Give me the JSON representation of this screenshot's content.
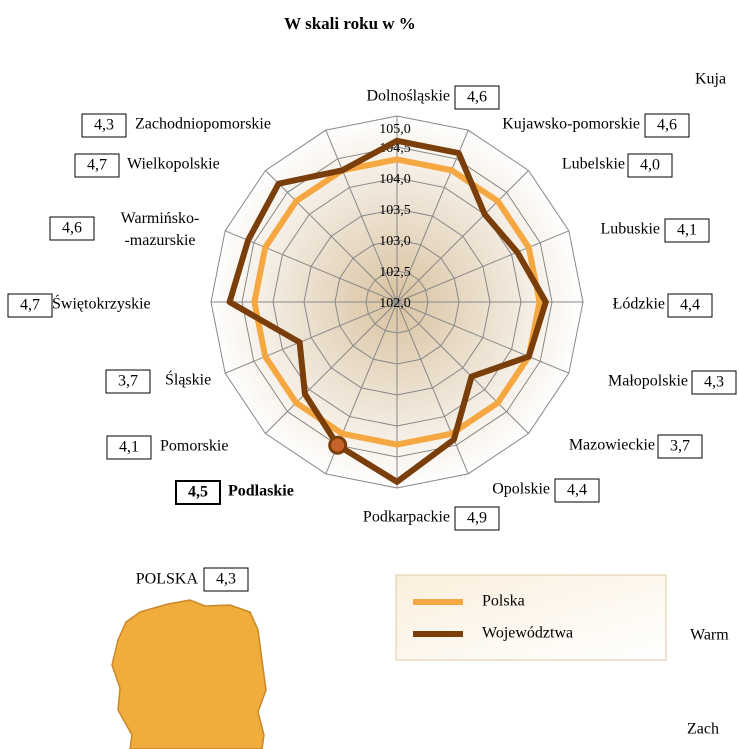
{
  "chart_data": {
    "type": "radar",
    "title": "W skali roku w %",
    "categories": [
      "Dolnośląskie",
      "Kujawsko-pomorskie",
      "Lubelskie",
      "Lubuskie",
      "Łódzkie",
      "Małopolskie",
      "Mazowieckie",
      "Opolskie",
      "Podkarpackie",
      "Podlaskie",
      "Pomorskie",
      "Śląskie",
      "Świętokrzyskie",
      "Warmińsko-\n-mazurskie",
      "Wielkopolskie",
      "Zachodniopomorskie"
    ],
    "series": [
      {
        "name": "Polska",
        "color": "#f5a841",
        "values": [
          104.3,
          104.3,
          104.3,
          104.3,
          104.3,
          104.3,
          104.3,
          104.3,
          104.3,
          104.3,
          104.3,
          104.3,
          104.3,
          104.3,
          104.3,
          104.3
        ]
      },
      {
        "name": "Województwa",
        "color": "#7a3e0a",
        "values": [
          104.6,
          104.6,
          104.0,
          104.1,
          104.4,
          104.3,
          103.7,
          104.4,
          104.9,
          104.5,
          104.1,
          103.7,
          104.7,
          104.6,
          104.7,
          104.3
        ],
        "value_labels": [
          "4,6",
          "4,6",
          "4,0",
          "4,1",
          "4,4",
          "4,3",
          "3,7",
          "4,4",
          "4,9",
          "4,5",
          "4,1",
          "3,7",
          "4,7",
          "4,6",
          "4,7",
          "4,3"
        ]
      }
    ],
    "rlim": [
      102,
      105
    ],
    "rticks": [
      {
        "value": 102,
        "label": "102,0"
      },
      {
        "value": 102.5,
        "label": "102,5"
      },
      {
        "value": 103,
        "label": "103,0"
      },
      {
        "value": 103.5,
        "label": "103,5"
      },
      {
        "value": 104,
        "label": "104,0"
      },
      {
        "value": 104.5,
        "label": "104,5"
      },
      {
        "value": 105,
        "label": "105,0"
      }
    ],
    "highlight": "Podlaskie",
    "national": {
      "name": "POLSKA",
      "value_label": "4,3"
    },
    "cropped_labels": [
      "Kuja",
      "Warm",
      "Zach"
    ]
  }
}
